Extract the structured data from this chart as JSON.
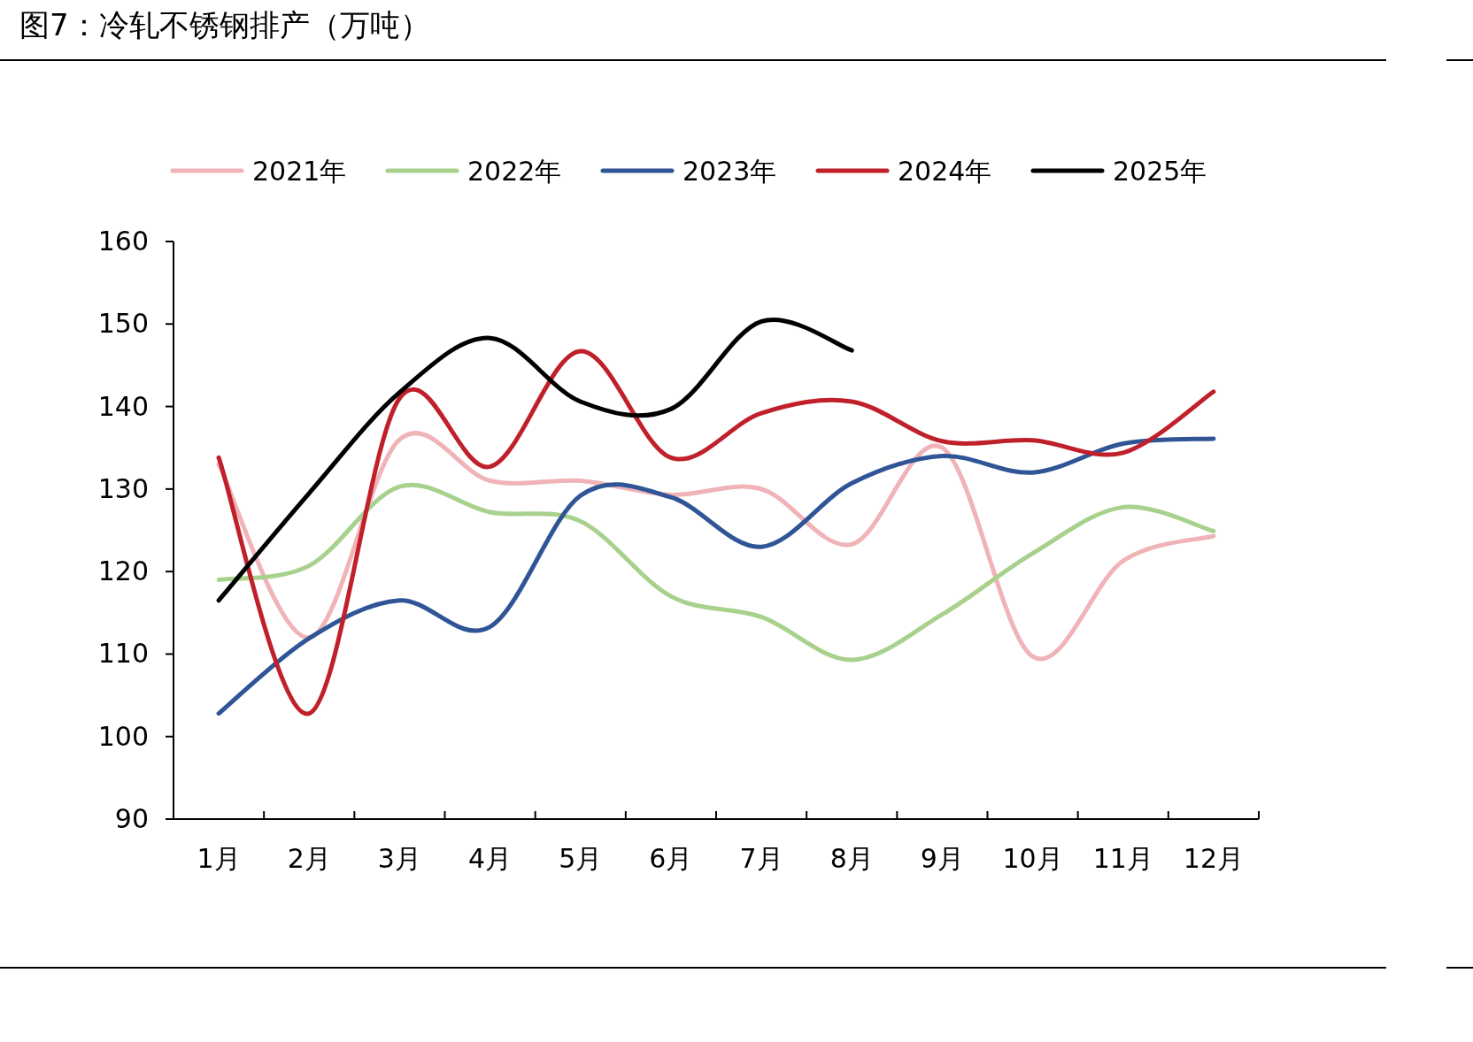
{
  "chart_data": {
    "type": "line",
    "title": "图7：冷轧不锈钢排产（万吨）",
    "categories": [
      "1月",
      "2月",
      "3月",
      "4月",
      "5月",
      "6月",
      "7月",
      "8月",
      "9月",
      "10月",
      "11月",
      "12月"
    ],
    "series": [
      {
        "name": "2021年",
        "color": "#f0b3b8",
        "values": [
          133,
          112,
          136,
          131,
          131,
          129.3,
          130,
          123.3,
          135,
          109.7,
          121.3,
          124.3
        ]
      },
      {
        "name": "2022年",
        "color": "#a9d18e",
        "values": [
          119,
          120.7,
          130.3,
          127.2,
          126.1,
          117,
          114.5,
          109.3,
          114.8,
          122.2,
          127.8,
          124.9
        ]
      },
      {
        "name": "2023年",
        "color": "#2f5597",
        "values": [
          102.8,
          111.9,
          116.5,
          113.3,
          129.2,
          129,
          123,
          130.7,
          134,
          132,
          135.5,
          136.1
        ]
      },
      {
        "name": "2024年",
        "color": "#c0202a",
        "values": [
          133.8,
          102.8,
          141,
          132.7,
          146.7,
          133.8,
          139.2,
          140.6,
          135.8,
          135.9,
          134.4,
          141.8
        ]
      },
      {
        "name": "2025年",
        "color": "#000000",
        "values": [
          116.5,
          129.5,
          141.7,
          148.3,
          140.6,
          139.7,
          150.3,
          146.8,
          null,
          null,
          null,
          null
        ]
      }
    ],
    "ylim": [
      90,
      160
    ],
    "yticks": [
      90,
      100,
      110,
      120,
      130,
      140,
      150,
      160
    ],
    "legend": "top",
    "marker": "none",
    "line_style": "solid"
  }
}
